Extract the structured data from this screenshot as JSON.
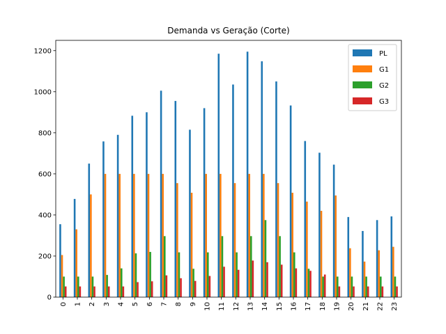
{
  "chart_data": {
    "type": "bar",
    "title": "Demanda vs Geração (Corte)",
    "xlabel": "",
    "ylabel": "",
    "ylim": [
      0,
      1250
    ],
    "yticks": [
      0,
      200,
      400,
      600,
      800,
      1000,
      1200
    ],
    "legend_position": "top-right",
    "grid": false,
    "categories": [
      "0",
      "1",
      "2",
      "3",
      "4",
      "5",
      "6",
      "7",
      "8",
      "9",
      "10",
      "11",
      "12",
      "13",
      "14",
      "15",
      "16",
      "17",
      "18",
      "19",
      "20",
      "21",
      "22",
      "23"
    ],
    "series": [
      {
        "name": "PL",
        "color": "#1f77b4",
        "values": [
          355,
          478,
          650,
          758,
          790,
          883,
          900,
          1005,
          955,
          815,
          920,
          1185,
          1035,
          1195,
          1148,
          1050,
          933,
          760,
          703,
          645,
          390,
          322,
          375,
          393
        ]
      },
      {
        "name": "G1",
        "color": "#ff7f0e",
        "values": [
          205,
          330,
          500,
          600,
          600,
          600,
          600,
          600,
          555,
          508,
          600,
          600,
          555,
          600,
          600,
          555,
          508,
          465,
          420,
          495,
          238,
          173,
          228,
          245
        ]
      },
      {
        "name": "G2",
        "color": "#2ca02c",
        "values": [
          100,
          100,
          100,
          108,
          140,
          213,
          220,
          297,
          218,
          138,
          218,
          297,
          218,
          297,
          375,
          297,
          218,
          138,
          100,
          100,
          100,
          100,
          100,
          100
        ]
      },
      {
        "name": "G3",
        "color": "#d62728",
        "values": [
          52,
          52,
          52,
          52,
          52,
          73,
          77,
          106,
          92,
          79,
          103,
          148,
          133,
          178,
          170,
          158,
          140,
          128,
          110,
          52,
          52,
          52,
          52,
          52
        ]
      }
    ]
  }
}
